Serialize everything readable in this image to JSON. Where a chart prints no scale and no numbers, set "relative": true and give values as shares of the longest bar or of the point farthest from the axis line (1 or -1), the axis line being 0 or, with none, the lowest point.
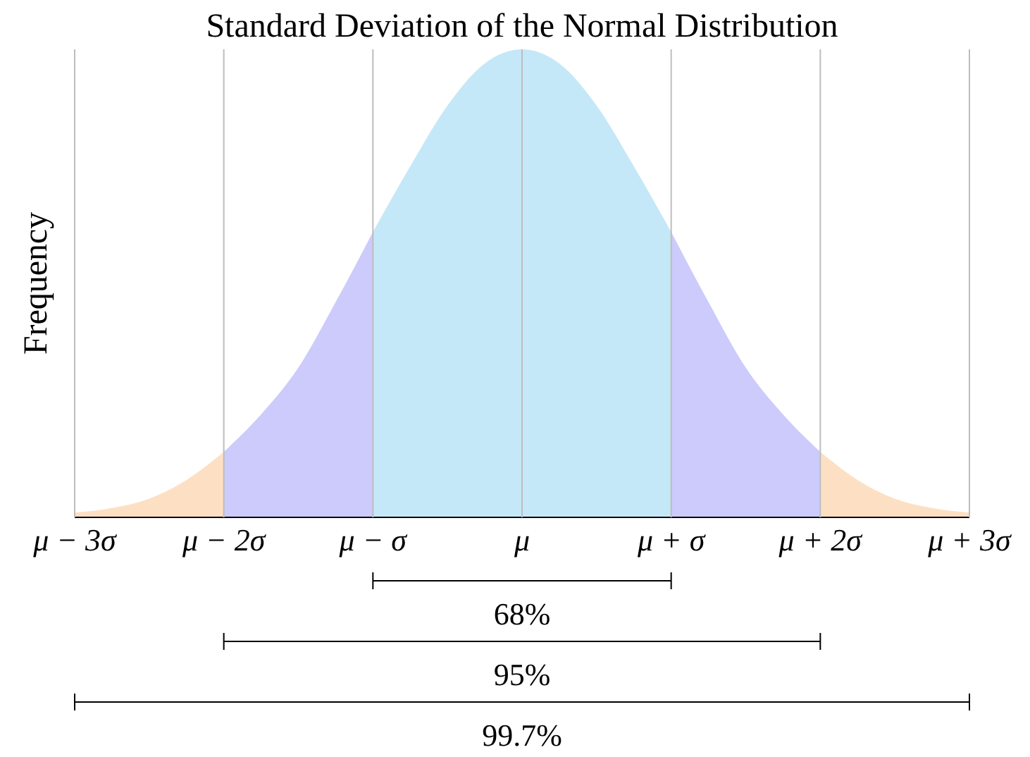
{
  "chart_data": {
    "type": "area",
    "title": "Standard Deviation of the Normal Distribution",
    "ylabel": "Frequency",
    "relative": true,
    "grid": "x",
    "xlim": [
      -3,
      3
    ],
    "xticks": [
      {
        "value": -3,
        "label": "μ − 3σ"
      },
      {
        "value": -2,
        "label": "μ − 2σ"
      },
      {
        "value": -1,
        "label": "μ − σ"
      },
      {
        "value": 0,
        "label": "μ"
      },
      {
        "value": 1,
        "label": "μ + σ"
      },
      {
        "value": 2,
        "label": "μ + 2σ"
      },
      {
        "value": 3,
        "label": "μ + 3σ"
      }
    ],
    "series": [
      {
        "color": "#fde0c4",
        "x": [
          -3,
          -2.75,
          -2.5,
          -2.25,
          -2
        ],
        "values": [
          0.01,
          0.02,
          0.04,
          0.08,
          0.14
        ]
      },
      {
        "color": "#cccbfb",
        "x": [
          -2,
          -1.75,
          -1.5,
          -1.25,
          -1
        ],
        "values": [
          0.14,
          0.22,
          0.32,
          0.46,
          0.61
        ]
      },
      {
        "color": "#c5e8f8",
        "x": [
          -1,
          -0.75,
          -0.5,
          -0.25,
          0,
          0.25,
          0.5,
          0.75,
          1
        ],
        "values": [
          0.61,
          0.75,
          0.88,
          0.97,
          1,
          0.97,
          0.88,
          0.75,
          0.61
        ]
      },
      {
        "color": "#cccbfb",
        "x": [
          1,
          1.25,
          1.5,
          1.75,
          2
        ],
        "values": [
          0.61,
          0.46,
          0.32,
          0.22,
          0.14
        ]
      },
      {
        "color": "#fde0c4",
        "x": [
          2,
          2.25,
          2.5,
          2.75,
          3
        ],
        "values": [
          0.14,
          0.08,
          0.04,
          0.02,
          0.01
        ]
      }
    ],
    "annotations": [
      "68%",
      "95%",
      "99.7%"
    ]
  }
}
